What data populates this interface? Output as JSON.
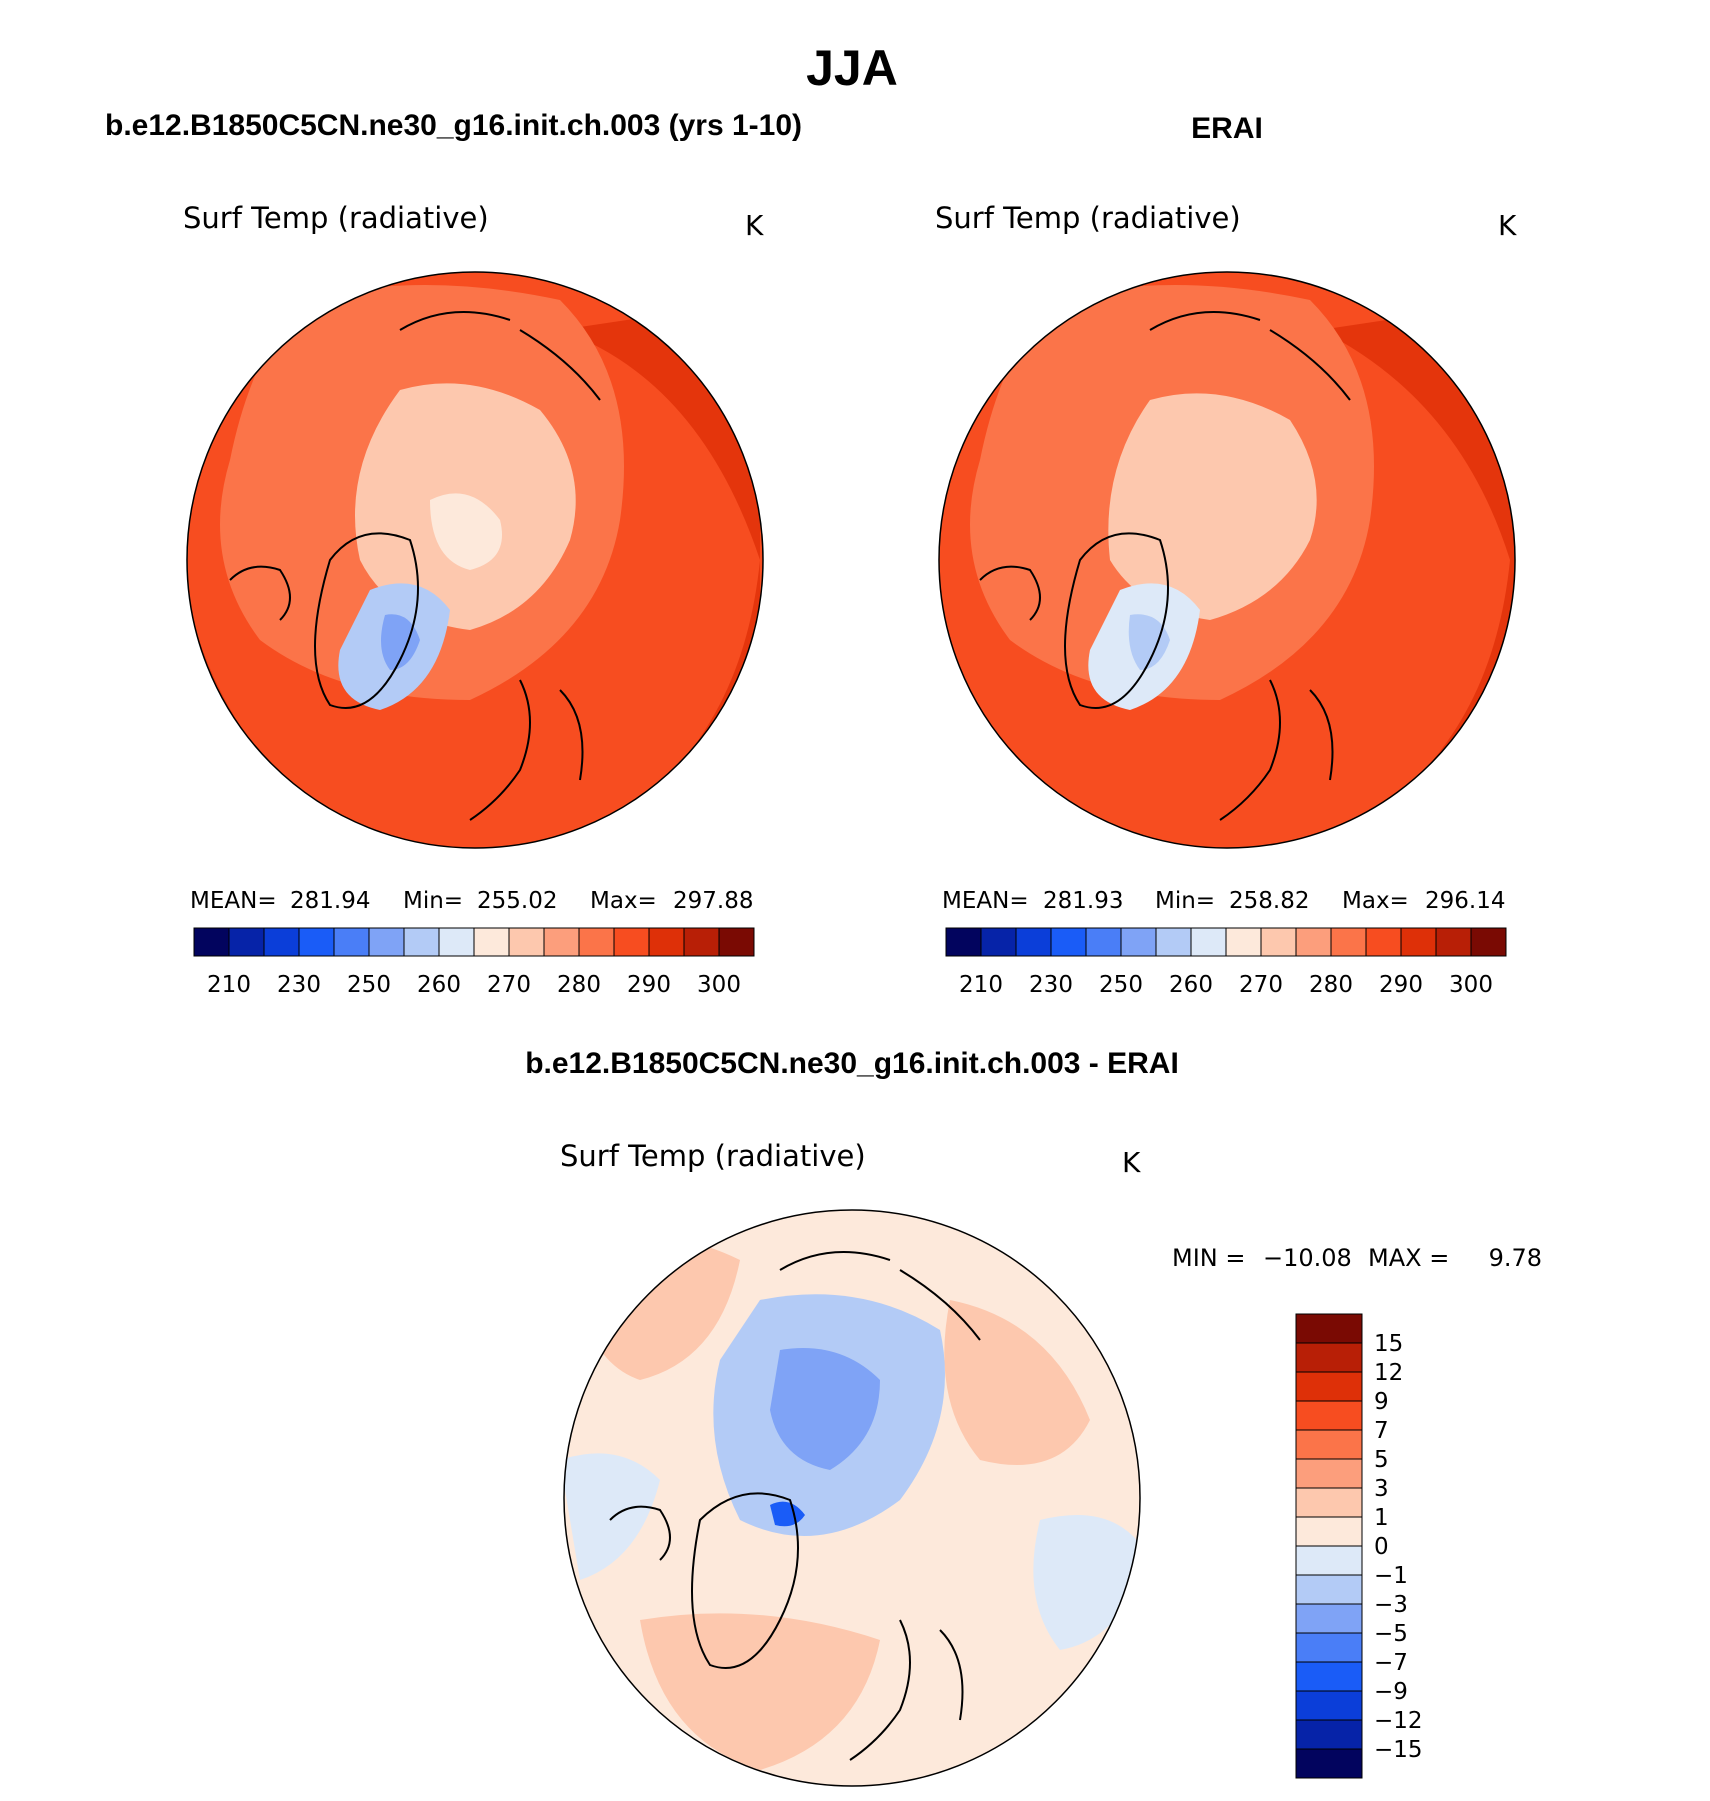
{
  "page": {
    "title": "JJA",
    "background": "#ffffff"
  },
  "panels": [
    {
      "case_title": "b.e12.B1850C5CN.ne30_g16.init.ch.003 (yrs 1-10)",
      "variable": "Surf Temp (radiative)",
      "units": "K",
      "stats": {
        "mean_label": "MEAN=",
        "mean": "281.94",
        "min_label": "Min=",
        "min": "255.02",
        "max_label": "Max=",
        "max": "297.88"
      }
    },
    {
      "case_title": "ERAI",
      "variable": "Surf Temp (radiative)",
      "units": "K",
      "stats": {
        "mean_label": "MEAN=",
        "mean": "281.93",
        "min_label": "Min=",
        "min": "258.82",
        "max_label": "Max=",
        "max": "296.14"
      }
    }
  ],
  "diff_panel": {
    "case_title": "b.e12.B1850C5CN.ne30_g16.init.ch.003 - ERAI",
    "variable": "Surf Temp (radiative)",
    "units": "K",
    "min_label": "MIN =",
    "min": "−10.08",
    "max_label": "MAX =",
    "max": "9.78"
  },
  "abs_colorbar": {
    "colors": [
      "#02045e",
      "#0623a8",
      "#0b3ed9",
      "#1a5cf7",
      "#4a7ef7",
      "#7fa3f6",
      "#b3cbf6",
      "#dde9f8",
      "#fde9db",
      "#fdc8ae",
      "#fc9e7c",
      "#fb7449",
      "#f74d20",
      "#de3008",
      "#b81f06",
      "#7a0a03"
    ],
    "labels": [
      "210",
      "230",
      "250",
      "260",
      "270",
      "280",
      "290",
      "300"
    ]
  },
  "diff_colorbar": {
    "colors": [
      "#7a0a03",
      "#b81f06",
      "#de3008",
      "#f74d20",
      "#fb7449",
      "#fc9e7c",
      "#fdc8ae",
      "#fde9db",
      "#dde9f8",
      "#b3cbf6",
      "#7fa3f6",
      "#4a7ef7",
      "#1a5cf7",
      "#0b3ed9",
      "#0623a8",
      "#02045e"
    ],
    "labels": [
      "15",
      "12",
      "9",
      "7",
      "5",
      "3",
      "1",
      "0",
      "−1",
      "−3",
      "−5",
      "−7",
      "−9",
      "−12",
      "−15"
    ]
  },
  "chart_data": [
    {
      "type": "heatmap",
      "title": "b.e12.B1850C5CN.ne30_g16.init.ch.003 (yrs 1-10)",
      "variable": "Surf Temp (radiative)",
      "units": "K",
      "projection": "north polar stereographic",
      "contour_levels": [
        210,
        220,
        230,
        240,
        250,
        255,
        260,
        265,
        270,
        275,
        280,
        285,
        290,
        295,
        300
      ],
      "stats": {
        "mean": 281.94,
        "min": 255.02,
        "max": 297.88
      }
    },
    {
      "type": "heatmap",
      "title": "ERAI",
      "variable": "Surf Temp (radiative)",
      "units": "K",
      "projection": "north polar stereographic",
      "contour_levels": [
        210,
        220,
        230,
        240,
        250,
        255,
        260,
        265,
        270,
        275,
        280,
        285,
        290,
        295,
        300
      ],
      "stats": {
        "mean": 281.93,
        "min": 258.82,
        "max": 296.14
      }
    },
    {
      "type": "heatmap",
      "title": "b.e12.B1850C5CN.ne30_g16.init.ch.003 - ERAI",
      "variable": "Surf Temp (radiative)",
      "units": "K",
      "projection": "north polar stereographic",
      "contour_levels": [
        -15,
        -12,
        -9,
        -7,
        -5,
        -3,
        -1,
        0,
        1,
        3,
        5,
        7,
        9,
        12,
        15
      ],
      "stats": {
        "min": -10.08,
        "max": 9.78
      }
    }
  ]
}
